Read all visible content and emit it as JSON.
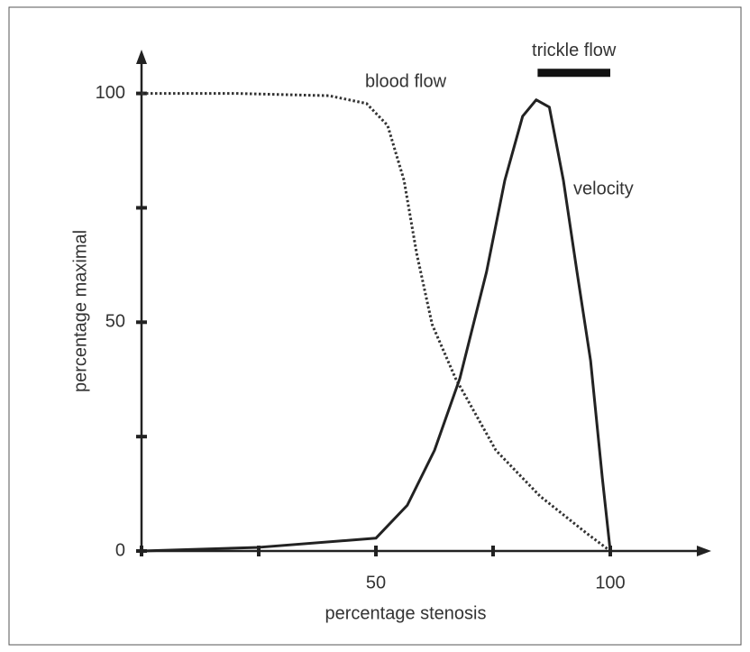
{
  "chart_data": {
    "type": "line",
    "xlabel": "percentage stenosis",
    "ylabel": "percentage maximal",
    "xlim": [
      0,
      120
    ],
    "ylim": [
      0,
      108
    ],
    "xticks": [
      0,
      50,
      100
    ],
    "xminor_ticks": [
      25,
      75
    ],
    "yticks": [
      0,
      50,
      100
    ],
    "yminor_ticks": [
      25,
      75
    ],
    "series": [
      {
        "name": "blood flow",
        "color": "#333333",
        "style": "dotted",
        "x": [
          0,
          20,
          40,
          48,
          52.5,
          56,
          58.7,
          62,
          67,
          75.6,
          85,
          94.8,
          100
        ],
        "values": [
          100,
          100,
          99.5,
          97.8,
          93,
          81,
          65,
          49.5,
          37.7,
          22,
          12,
          4,
          0
        ]
      },
      {
        "name": "velocity",
        "color": "#222222",
        "style": "solid",
        "x": [
          0,
          25,
          50,
          56.7,
          62.5,
          67.9,
          73.6,
          77.5,
          81.3,
          84.2,
          87,
          90,
          92.9,
          95.8,
          98.3,
          100
        ],
        "values": [
          0,
          0.8,
          2.8,
          10,
          22,
          37.7,
          61,
          81,
          95,
          98.6,
          97,
          81,
          61,
          41.6,
          16,
          0
        ]
      }
    ],
    "trickle_flow": {
      "label": "trickle flow",
      "x": [
        84.5,
        100
      ],
      "y": 104.5
    }
  }
}
